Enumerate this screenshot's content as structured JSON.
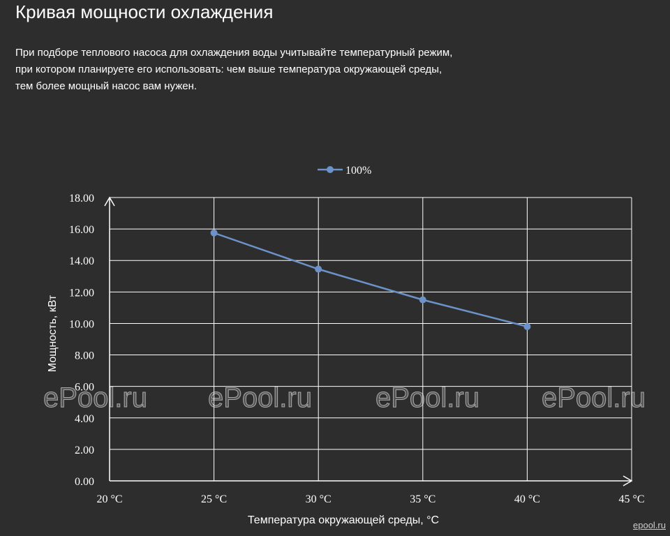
{
  "header": {
    "title": "Кривая мощности охлаждения",
    "description_lines": [
      "При подборе теплового насоса для охлаждения воды учитывайте температурный режим,",
      "при котором планируете его использовать: чем выше температура окружающей среды,",
      "тем более мощный насос вам нужен."
    ]
  },
  "chart_data": {
    "type": "line",
    "categories": [
      "20 °C",
      "25 °C",
      "30 °C",
      "35 °C",
      "40 °C",
      "45 °C"
    ],
    "x": [
      20,
      25,
      30,
      35,
      40,
      45
    ],
    "series": [
      {
        "name": "100%",
        "color": "#6b93c9",
        "x": [
          25,
          30,
          35,
          40
        ],
        "values": [
          15.75,
          13.45,
          11.5,
          9.8
        ]
      }
    ],
    "xlabel": "Температура окружающей среды, °C",
    "ylabel": "Мощность, кВт",
    "xlim": [
      20,
      45
    ],
    "ylim": [
      0,
      18
    ],
    "yticks": [
      "0.00",
      "2.00",
      "4.00",
      "6.00",
      "8.00",
      "10.00",
      "12.00",
      "14.00",
      "16.00",
      "18.00"
    ],
    "grid": true,
    "legend_position": "top-center"
  },
  "watermarks": {
    "text": "ePool.ru",
    "small": "epool.ru"
  },
  "colors": {
    "background": "#2d2d2d",
    "grid": "#ffffff",
    "series": "#6b93c9",
    "text": "#ffffff"
  }
}
